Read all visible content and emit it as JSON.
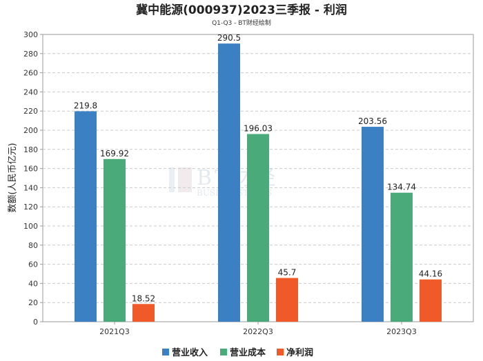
{
  "chart_data": {
    "type": "bar",
    "title": "冀中能源(000937)2023三季报 - 利润",
    "subtitle": "Q1-Q3 - BT财经绘制",
    "xlabel": "",
    "ylabel": "数额(人民币亿元)",
    "categories": [
      "2021Q3",
      "2022Q3",
      "2023Q3"
    ],
    "series": [
      {
        "name": "营业收入",
        "color": "#3a80c2",
        "values": [
          219.8,
          290.5,
          203.56
        ],
        "labels": [
          "219.8",
          "290.5",
          "203.56"
        ]
      },
      {
        "name": "营业成本",
        "color": "#4aaa79",
        "values": [
          169.92,
          196.03,
          134.74
        ],
        "labels": [
          "169.92",
          "196.03",
          "134.74"
        ]
      },
      {
        "name": "净利润",
        "color": "#f05a28",
        "values": [
          18.52,
          45.7,
          44.16
        ],
        "labels": [
          "18.52",
          "45.7",
          "44.16"
        ]
      }
    ],
    "ylim": [
      0,
      300
    ],
    "yticks": [
      0,
      20,
      40,
      60,
      80,
      100,
      120,
      140,
      160,
      180,
      200,
      220,
      240,
      260,
      280,
      300
    ],
    "grid": true,
    "legend": "bottom-center",
    "watermark": {
      "main": "BT财经",
      "sub": "BUSINESSTIMES"
    }
  }
}
